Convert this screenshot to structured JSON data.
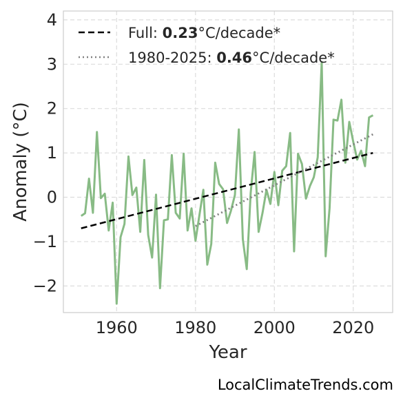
{
  "chart_data": {
    "type": "line",
    "xlabel": "Year",
    "ylabel": "Anomaly (°C)",
    "xlim": [
      1946.5,
      2030
    ],
    "ylim": [
      -2.6,
      4.2
    ],
    "xticks": [
      1960,
      1980,
      2000,
      2020
    ],
    "yticks": [
      -2,
      -1,
      0,
      1,
      2,
      3,
      4
    ],
    "ytick_labels": [
      "−2",
      "−1",
      "0",
      "1",
      "2",
      "3",
      "4"
    ],
    "grid": true,
    "legend_position": "top-left",
    "colors": {
      "anomaly": "#88bb85",
      "full_trend": "#000000",
      "recent_trend": "#808080"
    },
    "anomaly_series": {
      "x": [
        1951,
        1952,
        1953,
        1954,
        1955,
        1956,
        1957,
        1958,
        1959,
        1960,
        1961,
        1962,
        1963,
        1964,
        1965,
        1966,
        1967,
        1968,
        1969,
        1970,
        1971,
        1972,
        1973,
        1974,
        1975,
        1976,
        1977,
        1978,
        1979,
        1980,
        1981,
        1982,
        1983,
        1984,
        1985,
        1986,
        1987,
        1988,
        1989,
        1990,
        1991,
        1992,
        1993,
        1994,
        1995,
        1996,
        1997,
        1998,
        1999,
        2000,
        2001,
        2002,
        2003,
        2004,
        2005,
        2006,
        2007,
        2008,
        2009,
        2010,
        2011,
        2012,
        2013,
        2014,
        2015,
        2016,
        2017,
        2018,
        2019,
        2020,
        2021,
        2022,
        2023,
        2024,
        2025
      ],
      "y": [
        -0.42,
        -0.36,
        0.42,
        -0.35,
        1.47,
        -0.02,
        0.08,
        -0.75,
        -0.12,
        -2.4,
        -0.9,
        -0.6,
        0.92,
        0.05,
        0.22,
        -0.78,
        0.84,
        -0.85,
        -1.36,
        0.06,
        -2.05,
        -0.52,
        -0.5,
        0.95,
        -0.35,
        -0.48,
        0.98,
        -0.75,
        -0.25,
        -0.98,
        -0.4,
        0.17,
        -1.52,
        -1.05,
        0.78,
        0.3,
        0.18,
        -0.58,
        -0.3,
        0.05,
        1.53,
        -0.95,
        -1.62,
        0.1,
        1.02,
        -0.78,
        -0.35,
        0.17,
        -0.15,
        0.57,
        -0.18,
        0.6,
        0.7,
        1.45,
        -1.22,
        0.98,
        0.75,
        -0.03,
        0.25,
        0.45,
        0.9,
        3.05,
        -1.33,
        -0.25,
        1.75,
        1.73,
        2.2,
        0.78,
        1.7,
        1.25,
        0.85,
        1.05,
        0.7,
        1.8,
        1.85
      ]
    },
    "trend_lines": [
      {
        "x": [
          1951,
          2025
        ],
        "y": [
          -0.7,
          1.0
        ]
      },
      {
        "x": [
          1980,
          2025
        ],
        "y": [
          -0.65,
          1.42
        ]
      }
    ],
    "legend": [
      {
        "prefix": "Full: ",
        "value": "0.23",
        "suffix": "°C/decade*"
      },
      {
        "prefix": "1980-2025: ",
        "value": "0.46",
        "suffix": "°C/decade*"
      }
    ]
  },
  "source_text": "LocalClimateTrends.com"
}
